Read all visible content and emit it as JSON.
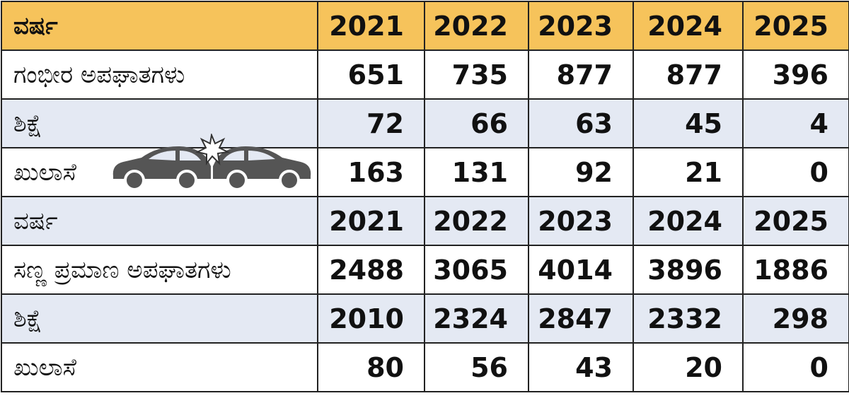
{
  "table": {
    "rows": [
      [
        "ವರ್ಷ",
        2021,
        2022,
        2023,
        2024,
        2025
      ],
      [
        "ಗಂಭೀರ ಅಪಘಾತಗಳು",
        651,
        735,
        877,
        877,
        396
      ],
      [
        "ಶಿಕ್ಷೆ",
        72,
        66,
        63,
        45,
        4
      ],
      [
        "ಖುಲಾಸೆ",
        163,
        131,
        92,
        21,
        0
      ],
      [
        "ವರ್ಷ",
        2021,
        2022,
        2023,
        2024,
        2025
      ],
      [
        "ಸಣ್ಣ ಪ್ರಮಾಣ ಅಪಘಾತಗಳು",
        2488,
        3065,
        4014,
        3896,
        1886
      ],
      [
        "ಶಿಕ್ಷೆ",
        2010,
        2324,
        2847,
        2332,
        298
      ],
      [
        "ಖುಲಾಸೆ",
        80,
        56,
        43,
        20,
        0
      ]
    ]
  }
}
